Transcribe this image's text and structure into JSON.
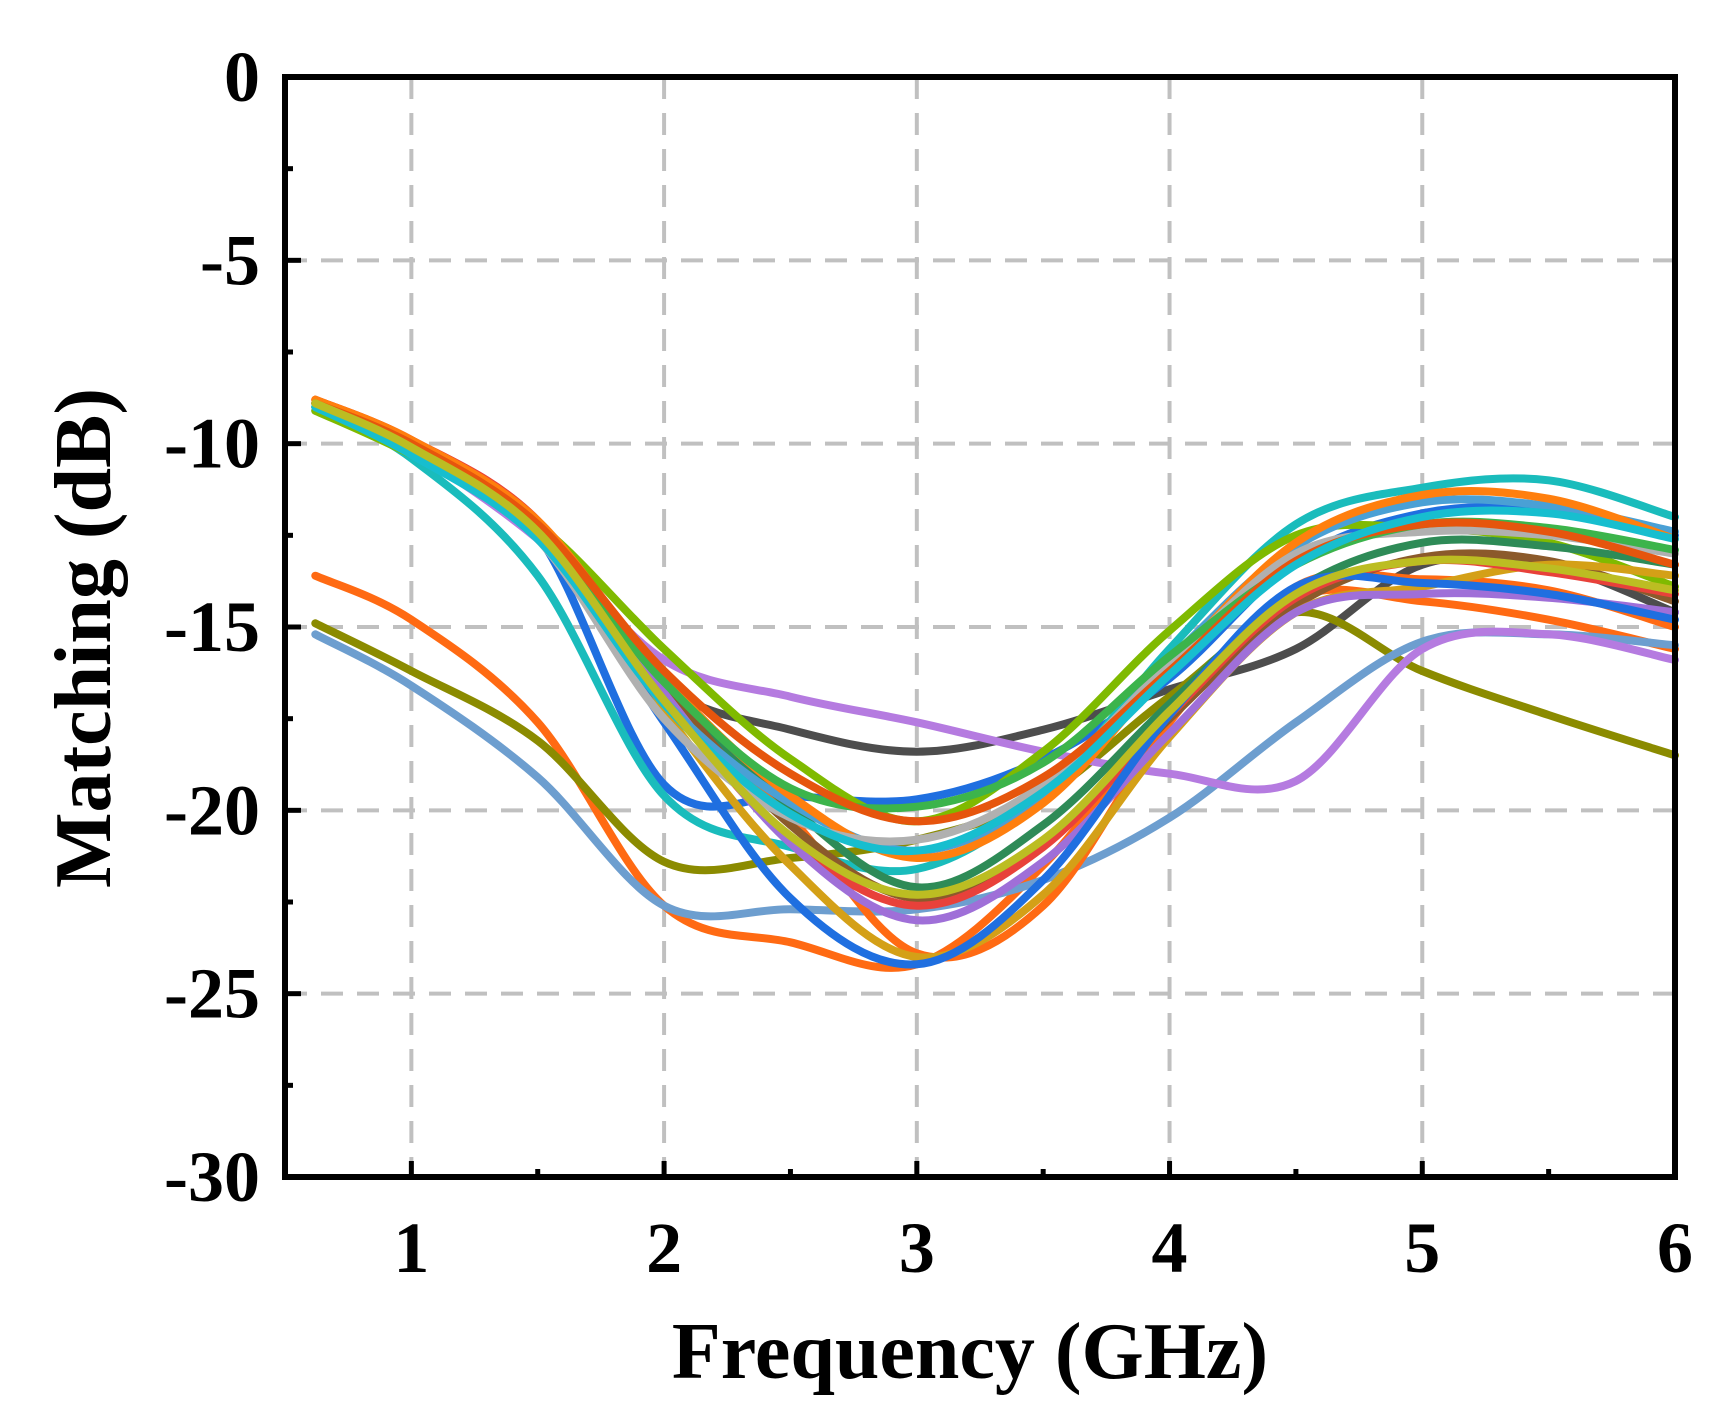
{
  "chart_data": {
    "type": "line",
    "title": "",
    "xlabel": "Frequency (GHz)",
    "ylabel": "Matching (dB)",
    "xlim": [
      0.5,
      6
    ],
    "ylim": [
      -30,
      0
    ],
    "xticks": [
      1,
      2,
      3,
      4,
      5,
      6
    ],
    "xtick_labels": [
      "1",
      "2",
      "3",
      "4",
      "5",
      "6"
    ],
    "yticks": [
      0,
      -5,
      -10,
      -15,
      -20,
      -25,
      -30
    ],
    "ytick_labels": [
      "0",
      "-5",
      "-10",
      "-15",
      "-20",
      "-25",
      "-30"
    ],
    "grid": true,
    "legend": "none",
    "series": [
      {
        "name": "s1",
        "color": "#4d4d4d",
        "x": [
          0.5,
          1,
          1.5,
          2,
          2.5,
          3,
          3.5,
          4,
          4.5,
          5,
          5.5,
          6
        ],
        "y": [
          -9.1,
          -10.2,
          -12.6,
          -16.6,
          -17.8,
          -18.4,
          -17.8,
          -16.7,
          -15.6,
          -13.3,
          -13.3,
          -14.6
        ]
      },
      {
        "name": "s2",
        "color": "#ff6a13",
        "x": [
          0.5,
          1,
          1.5,
          2,
          2.5,
          3,
          3.5,
          4,
          4.5,
          5,
          5.5,
          6
        ],
        "y": [
          -13.6,
          -14.8,
          -17.6,
          -22.6,
          -23.6,
          -24.2,
          -21.5,
          -17.3,
          -14.2,
          -14.3,
          -14.8,
          -15.6
        ]
      },
      {
        "name": "s3",
        "color": "#8b8b00",
        "x": [
          0.5,
          1,
          1.5,
          2,
          2.5,
          3,
          3.5,
          4,
          4.5,
          5,
          5.5,
          6
        ],
        "y": [
          -14.9,
          -16.2,
          -18.1,
          -21.4,
          -21.3,
          -20.8,
          -19.6,
          -16.9,
          -14.6,
          -16.2,
          -17.4,
          -18.5
        ]
      },
      {
        "name": "s4",
        "color": "#6d9ecf",
        "x": [
          0.5,
          1,
          1.5,
          2,
          2.5,
          3,
          3.5,
          4,
          4.5,
          5,
          5.5,
          6
        ],
        "y": [
          -15.2,
          -16.6,
          -19.1,
          -22.6,
          -22.7,
          -22.7,
          -21.9,
          -20.2,
          -17.6,
          -15.4,
          -15.2,
          -15.5
        ]
      },
      {
        "name": "s5",
        "color": "#b57be0",
        "x": [
          0.5,
          1,
          1.5,
          2,
          2.5,
          3,
          3.5,
          4,
          4.5,
          5,
          5.5,
          6
        ],
        "y": [
          -8.9,
          -10.2,
          -12.6,
          -15.9,
          -16.9,
          -17.6,
          -18.4,
          -19.0,
          -19.2,
          -15.6,
          -15.2,
          -15.9
        ]
      },
      {
        "name": "s6",
        "color": "#1f6fe0",
        "x": [
          0.5,
          1,
          1.5,
          2,
          2.5,
          3,
          3.5,
          4,
          4.5,
          5,
          5.5,
          6
        ],
        "y": [
          -8.9,
          -10.1,
          -12.5,
          -19.3,
          -19.6,
          -19.7,
          -18.6,
          -16.4,
          -13.2,
          -11.9,
          -11.8,
          -12.5
        ]
      },
      {
        "name": "s7",
        "color": "#1abcbc",
        "x": [
          0.5,
          1,
          1.5,
          2,
          2.5,
          3,
          3.5,
          4,
          4.5,
          5,
          5.5,
          6
        ],
        "y": [
          -9.0,
          -10.4,
          -13.6,
          -19.6,
          -21.0,
          -21.6,
          -19.6,
          -15.6,
          -12.2,
          -11.2,
          -11.0,
          -12.0
        ]
      },
      {
        "name": "s8",
        "color": "#7fba00",
        "x": [
          0.5,
          1,
          1.5,
          2,
          2.5,
          3,
          3.5,
          4,
          4.5,
          5,
          5.5,
          6
        ],
        "y": [
          -9.1,
          -10.3,
          -12.2,
          -15.6,
          -18.6,
          -20.3,
          -18.4,
          -15.1,
          -12.5,
          -12.3,
          -12.7,
          -13.9
        ]
      },
      {
        "name": "s9",
        "color": "#ff6a13",
        "x": [
          0.5,
          1,
          1.5,
          2,
          2.5,
          3,
          3.5,
          4,
          4.5,
          5,
          5.5,
          6
        ],
        "y": [
          -8.8,
          -9.9,
          -12.1,
          -16.8,
          -20.2,
          -23.9,
          -22.6,
          -17.6,
          -13.9,
          -13.7,
          -14.0,
          -15.0
        ]
      },
      {
        "name": "s10",
        "color": "#2e8b57",
        "x": [
          0.5,
          1,
          1.5,
          2,
          2.5,
          3,
          3.5,
          4,
          4.5,
          5,
          5.5,
          6
        ],
        "y": [
          -8.9,
          -10.0,
          -12.3,
          -16.5,
          -19.9,
          -22.1,
          -20.4,
          -17.1,
          -14.0,
          -12.7,
          -12.8,
          -13.3
        ]
      },
      {
        "name": "s11",
        "color": "#8b5a2b",
        "x": [
          0.5,
          1,
          1.5,
          2,
          2.5,
          3,
          3.5,
          4,
          4.5,
          5,
          5.5,
          6
        ],
        "y": [
          -8.9,
          -10.0,
          -12.3,
          -16.6,
          -20.4,
          -22.4,
          -20.9,
          -17.5,
          -14.4,
          -13.1,
          -13.2,
          -14.3
        ]
      },
      {
        "name": "s12",
        "color": "#d4a017",
        "x": [
          0.5,
          1,
          1.5,
          2,
          2.5,
          3,
          3.5,
          4,
          4.5,
          5,
          5.5,
          6
        ],
        "y": [
          -8.9,
          -10.1,
          -12.4,
          -17.3,
          -21.5,
          -24.0,
          -22.3,
          -18.0,
          -14.6,
          -13.9,
          -13.3,
          -13.6
        ]
      },
      {
        "name": "s13",
        "color": "#e8413a",
        "x": [
          0.5,
          1,
          1.5,
          2,
          2.5,
          3,
          3.5,
          4,
          4.5,
          5,
          5.5,
          6
        ],
        "y": [
          -8.8,
          -9.9,
          -12.1,
          -16.9,
          -20.8,
          -22.6,
          -21.0,
          -17.4,
          -14.2,
          -13.2,
          -13.5,
          -14.1
        ]
      },
      {
        "name": "s14",
        "color": "#9f6fd8",
        "x": [
          0.5,
          1,
          1.5,
          2,
          2.5,
          3,
          3.5,
          4,
          4.5,
          5,
          5.5,
          6
        ],
        "y": [
          -8.9,
          -10.0,
          -12.3,
          -16.8,
          -20.9,
          -23.0,
          -21.4,
          -17.9,
          -14.6,
          -14.1,
          -14.2,
          -14.6
        ]
      },
      {
        "name": "s15",
        "color": "#1f6fe0",
        "x": [
          0.5,
          1,
          1.5,
          2,
          2.5,
          3,
          3.5,
          4,
          4.5,
          5,
          5.5,
          6
        ],
        "y": [
          -8.9,
          -10.1,
          -12.5,
          -17.6,
          -22.4,
          -24.2,
          -21.9,
          -17.4,
          -13.9,
          -13.8,
          -14.1,
          -14.8
        ]
      },
      {
        "name": "s16",
        "color": "#4aa0d5",
        "x": [
          0.5,
          1,
          1.5,
          2,
          2.5,
          3,
          3.5,
          4,
          4.5,
          5,
          5.5,
          6
        ],
        "y": [
          -9.0,
          -10.2,
          -12.5,
          -17.0,
          -19.8,
          -21.1,
          -19.6,
          -15.9,
          -12.8,
          -11.6,
          -11.7,
          -12.4
        ]
      },
      {
        "name": "s17",
        "color": "#ff7f0e",
        "x": [
          0.5,
          1,
          1.5,
          2,
          2.5,
          3,
          3.5,
          4,
          4.5,
          5,
          5.5,
          6
        ],
        "y": [
          -8.8,
          -9.9,
          -12.1,
          -16.4,
          -19.6,
          -21.3,
          -19.8,
          -16.1,
          -12.7,
          -11.4,
          -11.5,
          -12.6
        ]
      },
      {
        "name": "s18",
        "color": "#b0b0b0",
        "x": [
          0.5,
          1,
          1.5,
          2,
          2.5,
          3,
          3.5,
          4,
          4.5,
          5,
          5.5,
          6
        ],
        "y": [
          -9.0,
          -10.2,
          -12.6,
          -17.5,
          -20.2,
          -20.8,
          -19.3,
          -16.0,
          -13.0,
          -12.4,
          -12.5,
          -13.0
        ]
      },
      {
        "name": "s19",
        "color": "#3cb44b",
        "x": [
          0.5,
          1,
          1.5,
          2,
          2.5,
          3,
          3.5,
          4,
          4.5,
          5,
          5.5,
          6
        ],
        "y": [
          -9.0,
          -10.2,
          -12.4,
          -16.5,
          -19.4,
          -19.9,
          -18.7,
          -15.8,
          -13.3,
          -12.2,
          -12.3,
          -12.9
        ]
      },
      {
        "name": "s20",
        "color": "#e6550d",
        "x": [
          0.5,
          1,
          1.5,
          2,
          2.5,
          3,
          3.5,
          4,
          4.5,
          5,
          5.5,
          6
        ],
        "y": [
          -8.9,
          -10.0,
          -12.2,
          -16.2,
          -19.0,
          -20.3,
          -19.1,
          -16.2,
          -13.2,
          -12.2,
          -12.4,
          -13.3
        ]
      },
      {
        "name": "s21",
        "color": "#17becf",
        "x": [
          0.5,
          1,
          1.5,
          2,
          2.5,
          3,
          3.5,
          4,
          4.5,
          5,
          5.5,
          6
        ],
        "y": [
          -9.0,
          -10.3,
          -12.6,
          -17.1,
          -20.1,
          -21.1,
          -19.5,
          -16.3,
          -13.3,
          -12.0,
          -11.9,
          -12.6
        ]
      },
      {
        "name": "s22",
        "color": "#bcbd22",
        "x": [
          0.5,
          1,
          1.5,
          2,
          2.5,
          3,
          3.5,
          4,
          4.5,
          5,
          5.5,
          6
        ],
        "y": [
          -8.9,
          -10.1,
          -12.4,
          -17.0,
          -20.7,
          -22.3,
          -20.8,
          -17.3,
          -14.1,
          -13.2,
          -13.4,
          -14.0
        ]
      }
    ]
  }
}
